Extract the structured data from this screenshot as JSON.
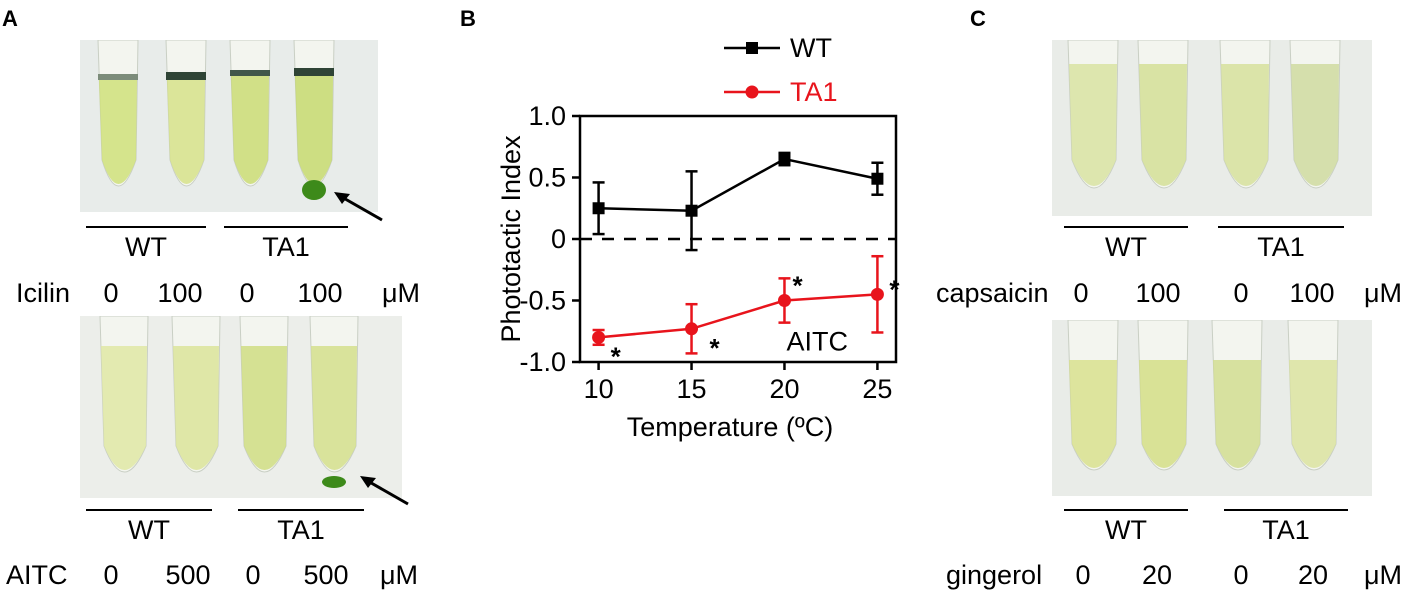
{
  "panels": {
    "A": {
      "letter": "A",
      "top": {
        "photo_desc": "tubes",
        "groups": [
          "WT",
          "TA1"
        ],
        "treatment_label": "Icilin",
        "doses": [
          "0",
          "100",
          "0",
          "100"
        ],
        "unit": "μM"
      },
      "bottom": {
        "photo_desc": "tubes",
        "groups": [
          "WT",
          "TA1"
        ],
        "treatment_label": "AITC",
        "doses": [
          "0",
          "500",
          "0",
          "500"
        ],
        "unit": "μM"
      }
    },
    "B": {
      "letter": "B"
    },
    "C": {
      "letter": "C",
      "top": {
        "groups": [
          "WT",
          "TA1"
        ],
        "treatment_label": "capsaicin",
        "doses": [
          "0",
          "100",
          "0",
          "100"
        ],
        "unit": "μM"
      },
      "bottom": {
        "groups": [
          "WT",
          "TA1"
        ],
        "treatment_label": "gingerol",
        "doses": [
          "0",
          "20",
          "0",
          "20"
        ],
        "unit": "μM"
      }
    }
  },
  "colors": {
    "wt": "#000000",
    "ta1": "#e8141c",
    "tube_green": "#cfe07a",
    "tube_dark_green": "#3d8a1a"
  },
  "chart_data": {
    "type": "line",
    "title": "",
    "xlabel": "Temperature (ºC)",
    "ylabel": "Phototactic Index",
    "x": [
      10,
      15,
      20,
      25
    ],
    "xlim": [
      9,
      26
    ],
    "ylim": [
      -1.0,
      1.0
    ],
    "xticks": [
      "10",
      "15",
      "20",
      "25"
    ],
    "yticks": [
      "1.0",
      "0.5",
      "0",
      "-0.5",
      "-1.0"
    ],
    "ytick_values": [
      1.0,
      0.5,
      0,
      -0.5,
      -1.0
    ],
    "legend_position": "top-right",
    "series": [
      {
        "name": "WT",
        "color": "#000000",
        "marker": "square",
        "values": [
          0.25,
          0.23,
          0.65,
          0.49
        ],
        "errors": [
          0.21,
          0.32,
          0.05,
          0.13
        ]
      },
      {
        "name": "TA1",
        "color": "#e8141c",
        "marker": "circle",
        "values": [
          -0.8,
          -0.73,
          -0.5,
          -0.45
        ],
        "errors": [
          0.06,
          0.2,
          0.18,
          0.31
        ]
      }
    ],
    "significance_marks": [
      "*",
      "*",
      "*",
      "*"
    ],
    "annotation": "AITC",
    "reference_line": 0
  }
}
